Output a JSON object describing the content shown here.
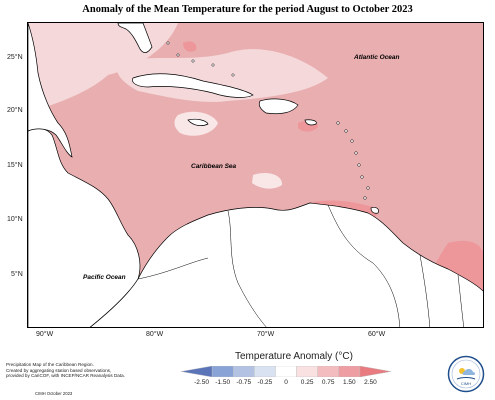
{
  "title": "Anomaly of the Mean Temperature for the period August to October 2023",
  "map": {
    "lat_labels": [
      "25°N",
      "20°N",
      "15°N",
      "10°N",
      "5°N"
    ],
    "lon_labels": [
      "90°W",
      "80°W",
      "70°W",
      "60°W"
    ],
    "ocean_labels": {
      "atlantic": "Atlantic Ocean",
      "caribbean": "Caribbean Sea",
      "pacific": "Pacific Ocean"
    },
    "colors": {
      "base_anomaly": "#e8aeb0",
      "warmer": "#ee979a",
      "cooler": "#f5d8da",
      "land_outline": "#000000"
    }
  },
  "legend": {
    "title": "Temperature Anomaly (°C)",
    "ticks": [
      "-2.50",
      "-1.50",
      "-0.75",
      "-0.25",
      "0",
      "0.25",
      "0.75",
      "1.50",
      "2.50"
    ],
    "colors": [
      "#5b74b8",
      "#8aa3d6",
      "#b3c2e3",
      "#d9e2f1",
      "#ffffff",
      "#f9e0e1",
      "#f3bcbf",
      "#ee9ea2",
      "#e87b80"
    ]
  },
  "footnote": {
    "lines": [
      "Precipitation Map of the Caribbean Region.",
      "Created by aggregating station based observations,",
      "provided by CariCOF, with INCEP/NCAR Reanalysis Data."
    ],
    "credit": "CIMH October 2023"
  },
  "logo": {
    "text": "CIMH",
    "icon": "cimh-logo-icon"
  }
}
